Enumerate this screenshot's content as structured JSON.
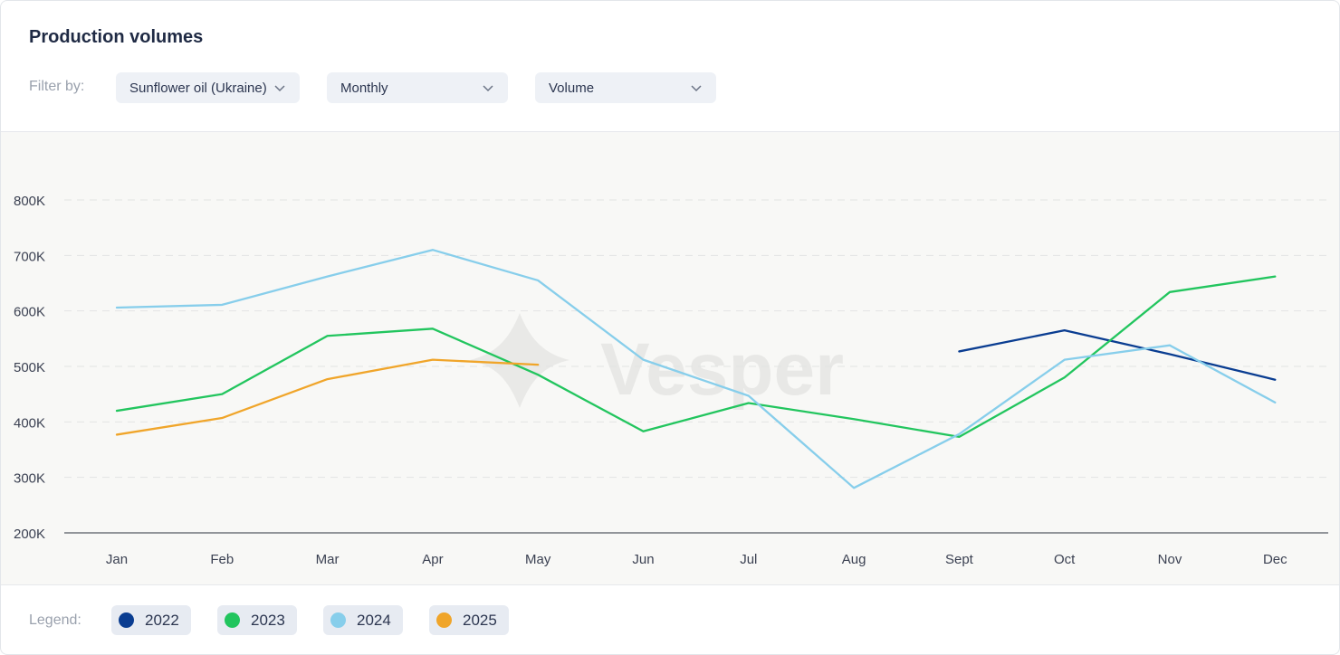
{
  "header": {
    "title": "Production volumes"
  },
  "filters": {
    "label": "Filter by:",
    "product": "Sunflower oil (Ukraine)",
    "period": "Monthly",
    "metric": "Volume"
  },
  "watermark": "Vesper",
  "legend": {
    "label": "Legend:",
    "items": [
      {
        "label": "2022",
        "color": "#0a3d91"
      },
      {
        "label": "2023",
        "color": "#22c55e"
      },
      {
        "label": "2024",
        "color": "#87ceeb"
      },
      {
        "label": "2025",
        "color": "#f0a52a"
      }
    ]
  },
  "chart_data": {
    "type": "line",
    "categories": [
      "Jan",
      "Feb",
      "Mar",
      "Apr",
      "May",
      "Jun",
      "Jul",
      "Aug",
      "Sept",
      "Oct",
      "Nov",
      "Dec"
    ],
    "yticks": [
      "200K",
      "300K",
      "400K",
      "500K",
      "600K",
      "700K",
      "800K"
    ],
    "ytick_values": [
      200000,
      300000,
      400000,
      500000,
      600000,
      700000,
      800000
    ],
    "ylim": [
      200000,
      800000
    ],
    "grid": true,
    "series": [
      {
        "name": "2022",
        "color": "#0a3d91",
        "values": [
          null,
          null,
          null,
          null,
          null,
          null,
          null,
          null,
          527000,
          565000,
          522000,
          476000
        ]
      },
      {
        "name": "2023",
        "color": "#22c55e",
        "values": [
          420000,
          450000,
          555000,
          568000,
          485000,
          383000,
          434000,
          405000,
          373000,
          480000,
          634000,
          662000
        ]
      },
      {
        "name": "2024",
        "color": "#87ceeb",
        "values": [
          606000,
          611000,
          662000,
          710000,
          655000,
          512000,
          447000,
          281000,
          378000,
          512000,
          538000,
          435000
        ]
      },
      {
        "name": "2025",
        "color": "#f0a52a",
        "values": [
          377000,
          407000,
          477000,
          512000,
          503000,
          null,
          null,
          null,
          null,
          null,
          null,
          null
        ]
      }
    ]
  }
}
